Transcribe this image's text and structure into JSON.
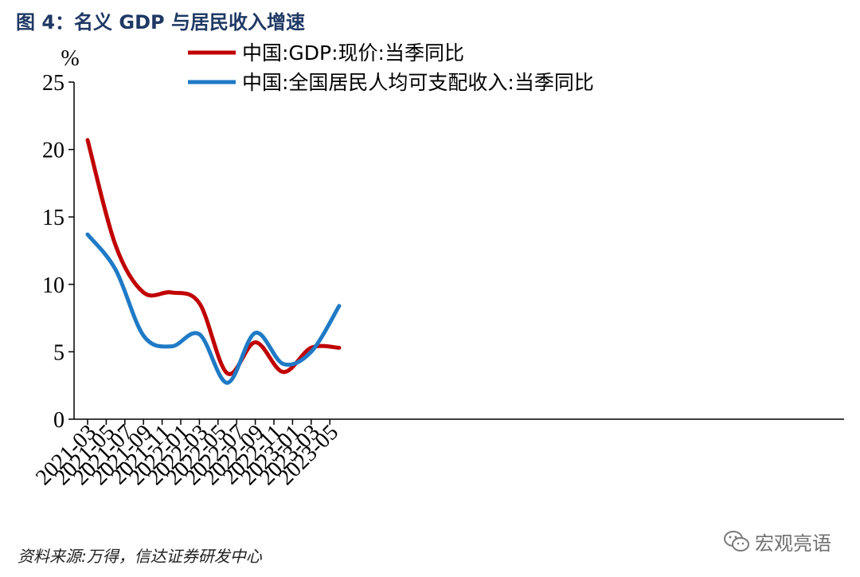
{
  "title": "图 4：名义 GDP 与居民收入增速",
  "source": "资料来源:万得，信达证券研发中心",
  "watermark": {
    "text": "宏观亮语",
    "icon": "wechat-icon"
  },
  "chart_data": {
    "type": "line",
    "ylabel": "%",
    "ylim": [
      0,
      25
    ],
    "yticks": [
      0,
      5,
      10,
      15,
      20,
      25
    ],
    "xticks": [
      "2021-03",
      "2021-05",
      "2021-07",
      "2021-09",
      "2021-11",
      "2022-01",
      "2022-03",
      "2022-05",
      "2022-07",
      "2022-09",
      "2022-11",
      "2023-01",
      "2023-03",
      "2023-05"
    ],
    "legend_position": "top",
    "grid": false,
    "x": [
      "2021-03",
      "2021-06",
      "2021-09",
      "2021-12",
      "2022-03",
      "2022-06",
      "2022-09",
      "2022-12",
      "2023-03",
      "2023-06"
    ],
    "series": [
      {
        "name": "中国:GDP:现价:当季同比",
        "color": "#c00000",
        "values": [
          20.7,
          12.9,
          9.4,
          9.4,
          8.6,
          3.4,
          5.7,
          3.5,
          5.3,
          5.3
        ]
      },
      {
        "name": "中国:全国居民人均可支配收入:当季同比",
        "color": "#1f7ac6",
        "values": [
          13.7,
          11.1,
          6.2,
          5.4,
          6.3,
          2.7,
          6.4,
          4.1,
          5.0,
          8.4
        ]
      }
    ]
  }
}
